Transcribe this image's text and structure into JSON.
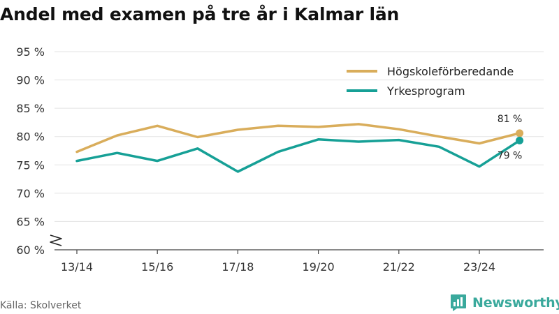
{
  "chart_data": {
    "type": "line",
    "title": "Andel med examen på tre år i Kalmar län",
    "x": [
      "13/14",
      "14/15",
      "15/16",
      "16/17",
      "17/18",
      "18/19",
      "19/20",
      "20/21",
      "21/22",
      "22/23",
      "23/24",
      "24/25"
    ],
    "x_tick_labels": [
      "13/14",
      "15/16",
      "17/18",
      "19/20",
      "21/22",
      "23/24"
    ],
    "y_ticks": [
      60,
      65,
      70,
      75,
      80,
      85,
      90,
      95
    ],
    "y_tick_labels": [
      "60 %",
      "65 %",
      "70 %",
      "75 %",
      "80 %",
      "85 %",
      "90 %",
      "95 %"
    ],
    "ylim": [
      60,
      95
    ],
    "y_axis_break": true,
    "grid": "horizontal",
    "legend_position": "top-right",
    "series": [
      {
        "name": "Högskoleförberedande",
        "color": "#d9ad5b",
        "values": [
          77.3,
          80.2,
          81.9,
          79.9,
          81.2,
          81.9,
          81.7,
          82.2,
          81.3,
          80.0,
          78.8,
          80.6
        ],
        "end_label": "81 %"
      },
      {
        "name": "Yrkesprogram",
        "color": "#16a096",
        "values": [
          75.7,
          77.1,
          75.7,
          77.9,
          73.8,
          77.3,
          79.5,
          79.1,
          79.4,
          78.2,
          74.7,
          79.3
        ],
        "end_label": "79 %"
      }
    ]
  },
  "footer": {
    "source": "Källa: Skolverket",
    "brand": "Newsworthy"
  },
  "colors": {
    "grid": "#e3e3e3",
    "axis": "#444444",
    "brand": "#3aa99c"
  }
}
